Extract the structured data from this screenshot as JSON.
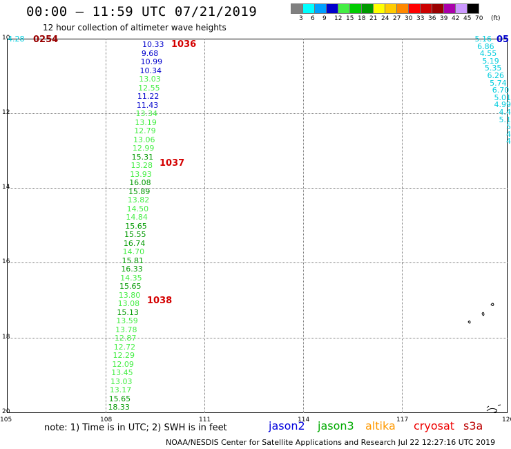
{
  "header": {
    "title": "00:00 – 11:59 UTC 07/21/2019",
    "subtitle": "12 hour collection of altimeter wave heights"
  },
  "legend": {
    "unit": "(ft)",
    "bins": [
      {
        "label": "3",
        "color": "#808080"
      },
      {
        "label": "6",
        "color": "#00ffff"
      },
      {
        "label": "9",
        "color": "#00a0ff"
      },
      {
        "label": "12",
        "color": "#0000cc"
      },
      {
        "label": "15",
        "color": "#44ee44"
      },
      {
        "label": "18",
        "color": "#00cc00"
      },
      {
        "label": "21",
        "color": "#009900"
      },
      {
        "label": "24",
        "color": "#ffff00"
      },
      {
        "label": "27",
        "color": "#ffcc00"
      },
      {
        "label": "30",
        "color": "#ff8800"
      },
      {
        "label": "33",
        "color": "#ff0000"
      },
      {
        "label": "36",
        "color": "#cc0000"
      },
      {
        "label": "39",
        "color": "#990000"
      },
      {
        "label": "42",
        "color": "#aa00aa"
      },
      {
        "label": "45",
        "color": "#cc99ff"
      },
      {
        "label": "70",
        "color": "#000000"
      }
    ]
  },
  "map": {
    "lat_labels": [
      "10",
      "12",
      "14",
      "16",
      "18",
      "20"
    ],
    "lon_labels": [
      "105",
      "108",
      "111",
      "114",
      "117",
      "120"
    ]
  },
  "track_center": {
    "time_labels": [
      "1036",
      "1037",
      "1038"
    ],
    "values": [
      {
        "v": "10.33",
        "c": "#0000cc"
      },
      {
        "v": "9.68",
        "c": "#0000cc"
      },
      {
        "v": "10.99",
        "c": "#0000cc"
      },
      {
        "v": "10.34",
        "c": "#0000cc"
      },
      {
        "v": "13.03",
        "c": "#44ee44"
      },
      {
        "v": "12.55",
        "c": "#44ee44"
      },
      {
        "v": "11.22",
        "c": "#0000cc"
      },
      {
        "v": "11.43",
        "c": "#0000cc"
      },
      {
        "v": "13.34",
        "c": "#44ee44"
      },
      {
        "v": "13.19",
        "c": "#44ee44"
      },
      {
        "v": "12.79",
        "c": "#44ee44"
      },
      {
        "v": "13.06",
        "c": "#44ee44"
      },
      {
        "v": "12.99",
        "c": "#44ee44"
      },
      {
        "v": "15.31",
        "c": "#009900"
      },
      {
        "v": "13.28",
        "c": "#44ee44"
      },
      {
        "v": "13.93",
        "c": "#44ee44"
      },
      {
        "v": "16.08",
        "c": "#009900"
      },
      {
        "v": "15.89",
        "c": "#009900"
      },
      {
        "v": "13.82",
        "c": "#44ee44"
      },
      {
        "v": "14.50",
        "c": "#44ee44"
      },
      {
        "v": "14.84",
        "c": "#44ee44"
      },
      {
        "v": "15.65",
        "c": "#009900"
      },
      {
        "v": "15.55",
        "c": "#009900"
      },
      {
        "v": "16.74",
        "c": "#009900"
      },
      {
        "v": "14.70",
        "c": "#44ee44"
      },
      {
        "v": "15.81",
        "c": "#009900"
      },
      {
        "v": "16.33",
        "c": "#009900"
      },
      {
        "v": "14.35",
        "c": "#44ee44"
      },
      {
        "v": "15.65",
        "c": "#009900"
      },
      {
        "v": "13.80",
        "c": "#44ee44"
      },
      {
        "v": "13.08",
        "c": "#44ee44"
      },
      {
        "v": "15.13",
        "c": "#009900"
      },
      {
        "v": "13.59",
        "c": "#44ee44"
      },
      {
        "v": "13.78",
        "c": "#44ee44"
      },
      {
        "v": "12.87",
        "c": "#44ee44"
      },
      {
        "v": "12.72",
        "c": "#44ee44"
      },
      {
        "v": "12.29",
        "c": "#44ee44"
      },
      {
        "v": "12.09",
        "c": "#44ee44"
      },
      {
        "v": "13.45",
        "c": "#44ee44"
      },
      {
        "v": "13.03",
        "c": "#44ee44"
      },
      {
        "v": "13.17",
        "c": "#44ee44"
      },
      {
        "v": "15.65",
        "c": "#009900"
      },
      {
        "v": "18.33",
        "c": "#009900"
      }
    ]
  },
  "track_left": {
    "time_label": "0254",
    "value": "4.28"
  },
  "track_right": {
    "time_label": "05",
    "values": [
      {
        "v": "5.16",
        "c": "#00ccdd"
      },
      {
        "v": "6.86",
        "c": "#00ccdd"
      },
      {
        "v": "4.55",
        "c": "#00ccdd"
      },
      {
        "v": "5.19",
        "c": "#00ccdd"
      },
      {
        "v": "5.35",
        "c": "#00ccdd"
      },
      {
        "v": "6.26",
        "c": "#00ccdd"
      },
      {
        "v": "5.74",
        "c": "#00ccdd"
      },
      {
        "v": "6.70",
        "c": "#00ccdd"
      },
      {
        "v": "5.01",
        "c": "#00ccdd"
      },
      {
        "v": "4.99",
        "c": "#00ccdd"
      },
      {
        "v": "4.4",
        "c": "#00ccdd"
      },
      {
        "v": "5.1",
        "c": "#00ccdd"
      },
      {
        "v": "5",
        "c": "#00ccdd"
      },
      {
        "v": "4",
        "c": "#00ccdd"
      },
      {
        "v": "4",
        "c": "#00ccdd"
      }
    ]
  },
  "footer": {
    "note": "note:  1) Time is in UTC;  2) SWH is in feet",
    "satellites": [
      {
        "name": "jason2",
        "color": "#0000dd"
      },
      {
        "name": "jason3",
        "color": "#00aa00"
      },
      {
        "name": "altika",
        "color": "#ff9900"
      },
      {
        "name": "cryosat",
        "color": "#ee0000"
      },
      {
        "name": "s3a",
        "color": "#bb0000"
      }
    ],
    "credit": "NOAA/NESDIS Center for Satellite Applications and Research     Jul 22 12:27:16 UTC 2019"
  }
}
